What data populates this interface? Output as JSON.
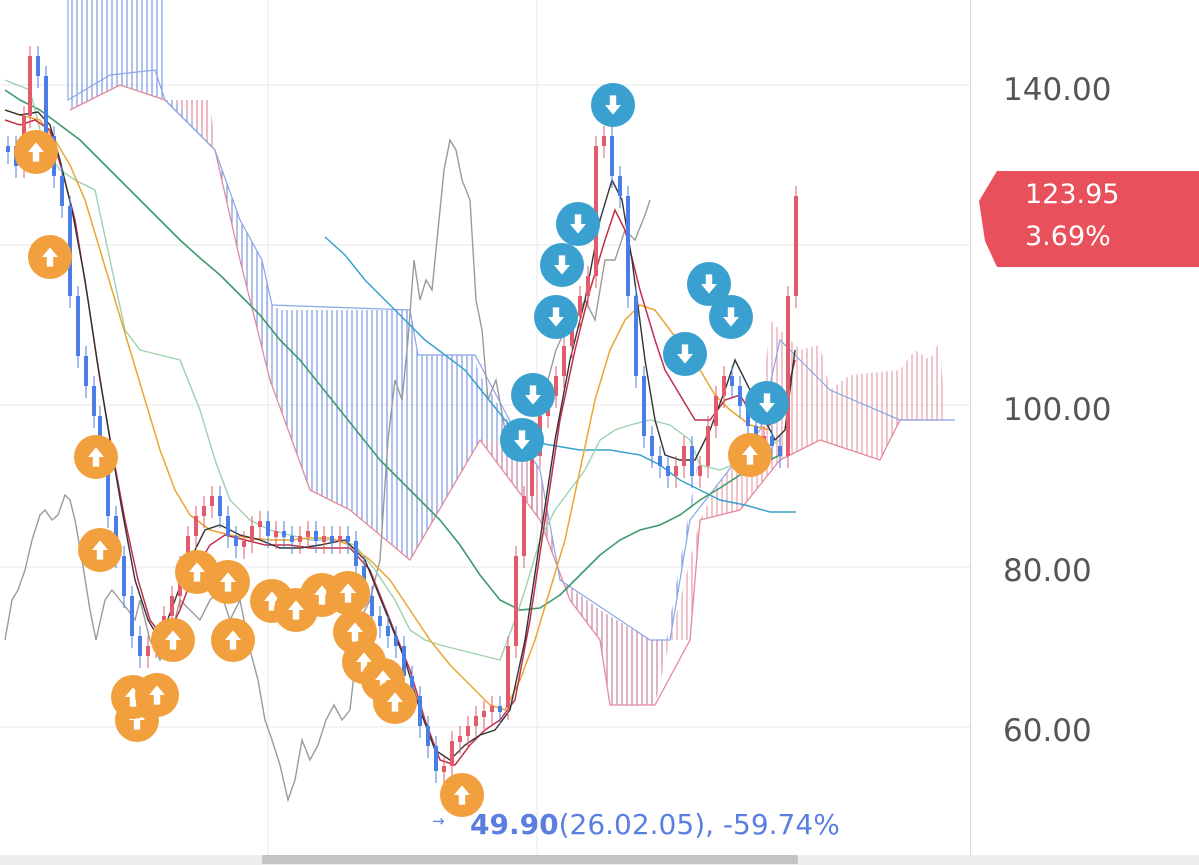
{
  "chart_data": {
    "type": "candlestick",
    "yaxis": {
      "ticks": [
        "140.00",
        "100.00",
        "80.00",
        "60.00"
      ],
      "tick_values": [
        140,
        100,
        80,
        60
      ],
      "ylim": [
        47.5,
        150
      ]
    },
    "current_price": {
      "value": "123.95",
      "change": "3.69%",
      "color": "#e8505b"
    },
    "low_annotation": {
      "price": "49.90",
      "date": "(26.02.05)",
      "change": ", -59.74%",
      "arrow": "→",
      "color": "#5b7fe0"
    },
    "colors": {
      "up": "#e35b6b",
      "down": "#4a7de6",
      "buy_signal": "#f2a03d",
      "sell_signal": "#3aa0cf",
      "cloud_bull": "#e48a9a",
      "cloud_bear": "#6a8fe0"
    },
    "buy_signal_icon": "up-arrow-icon",
    "sell_signal_icon": "down-arrow-icon"
  },
  "scrollbar": {
    "visible": true
  }
}
